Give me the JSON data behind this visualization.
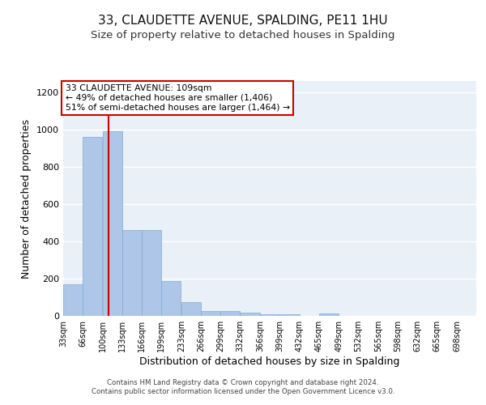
{
  "title": "33, CLAUDETTE AVENUE, SPALDING, PE11 1HU",
  "subtitle": "Size of property relative to detached houses in Spalding",
  "xlabel": "Distribution of detached houses by size in Spalding",
  "ylabel": "Number of detached properties",
  "footer_line1": "Contains HM Land Registry data © Crown copyright and database right 2024.",
  "footer_line2": "Contains public sector information licensed under the Open Government Licence v3.0.",
  "bar_edges": [
    33,
    66,
    100,
    133,
    166,
    199,
    233,
    266,
    299,
    332,
    366,
    399,
    432,
    465,
    499,
    532,
    565,
    598,
    632,
    665,
    698
  ],
  "bar_heights": [
    170,
    960,
    990,
    460,
    460,
    185,
    75,
    28,
    25,
    18,
    10,
    10,
    0,
    15,
    0,
    0,
    0,
    0,
    0,
    0
  ],
  "bar_color": "#aec6e8",
  "bar_edgecolor": "#7aadd4",
  "property_size": 109,
  "vline_color": "#cc0000",
  "annotation_line1": "33 CLAUDETTE AVENUE: 109sqm",
  "annotation_line2": "← 49% of detached houses are smaller (1,406)",
  "annotation_line3": "51% of semi-detached houses are larger (1,464) →",
  "annotation_box_color": "#ffffff",
  "annotation_box_edgecolor": "#cc0000",
  "ylim": [
    0,
    1260
  ],
  "yticks": [
    0,
    200,
    400,
    600,
    800,
    1000,
    1200
  ],
  "background_color": "#eaf0f8",
  "grid_color": "#ffffff",
  "title_fontsize": 11,
  "subtitle_fontsize": 9.5,
  "xlabel_fontsize": 9,
  "ylabel_fontsize": 9
}
